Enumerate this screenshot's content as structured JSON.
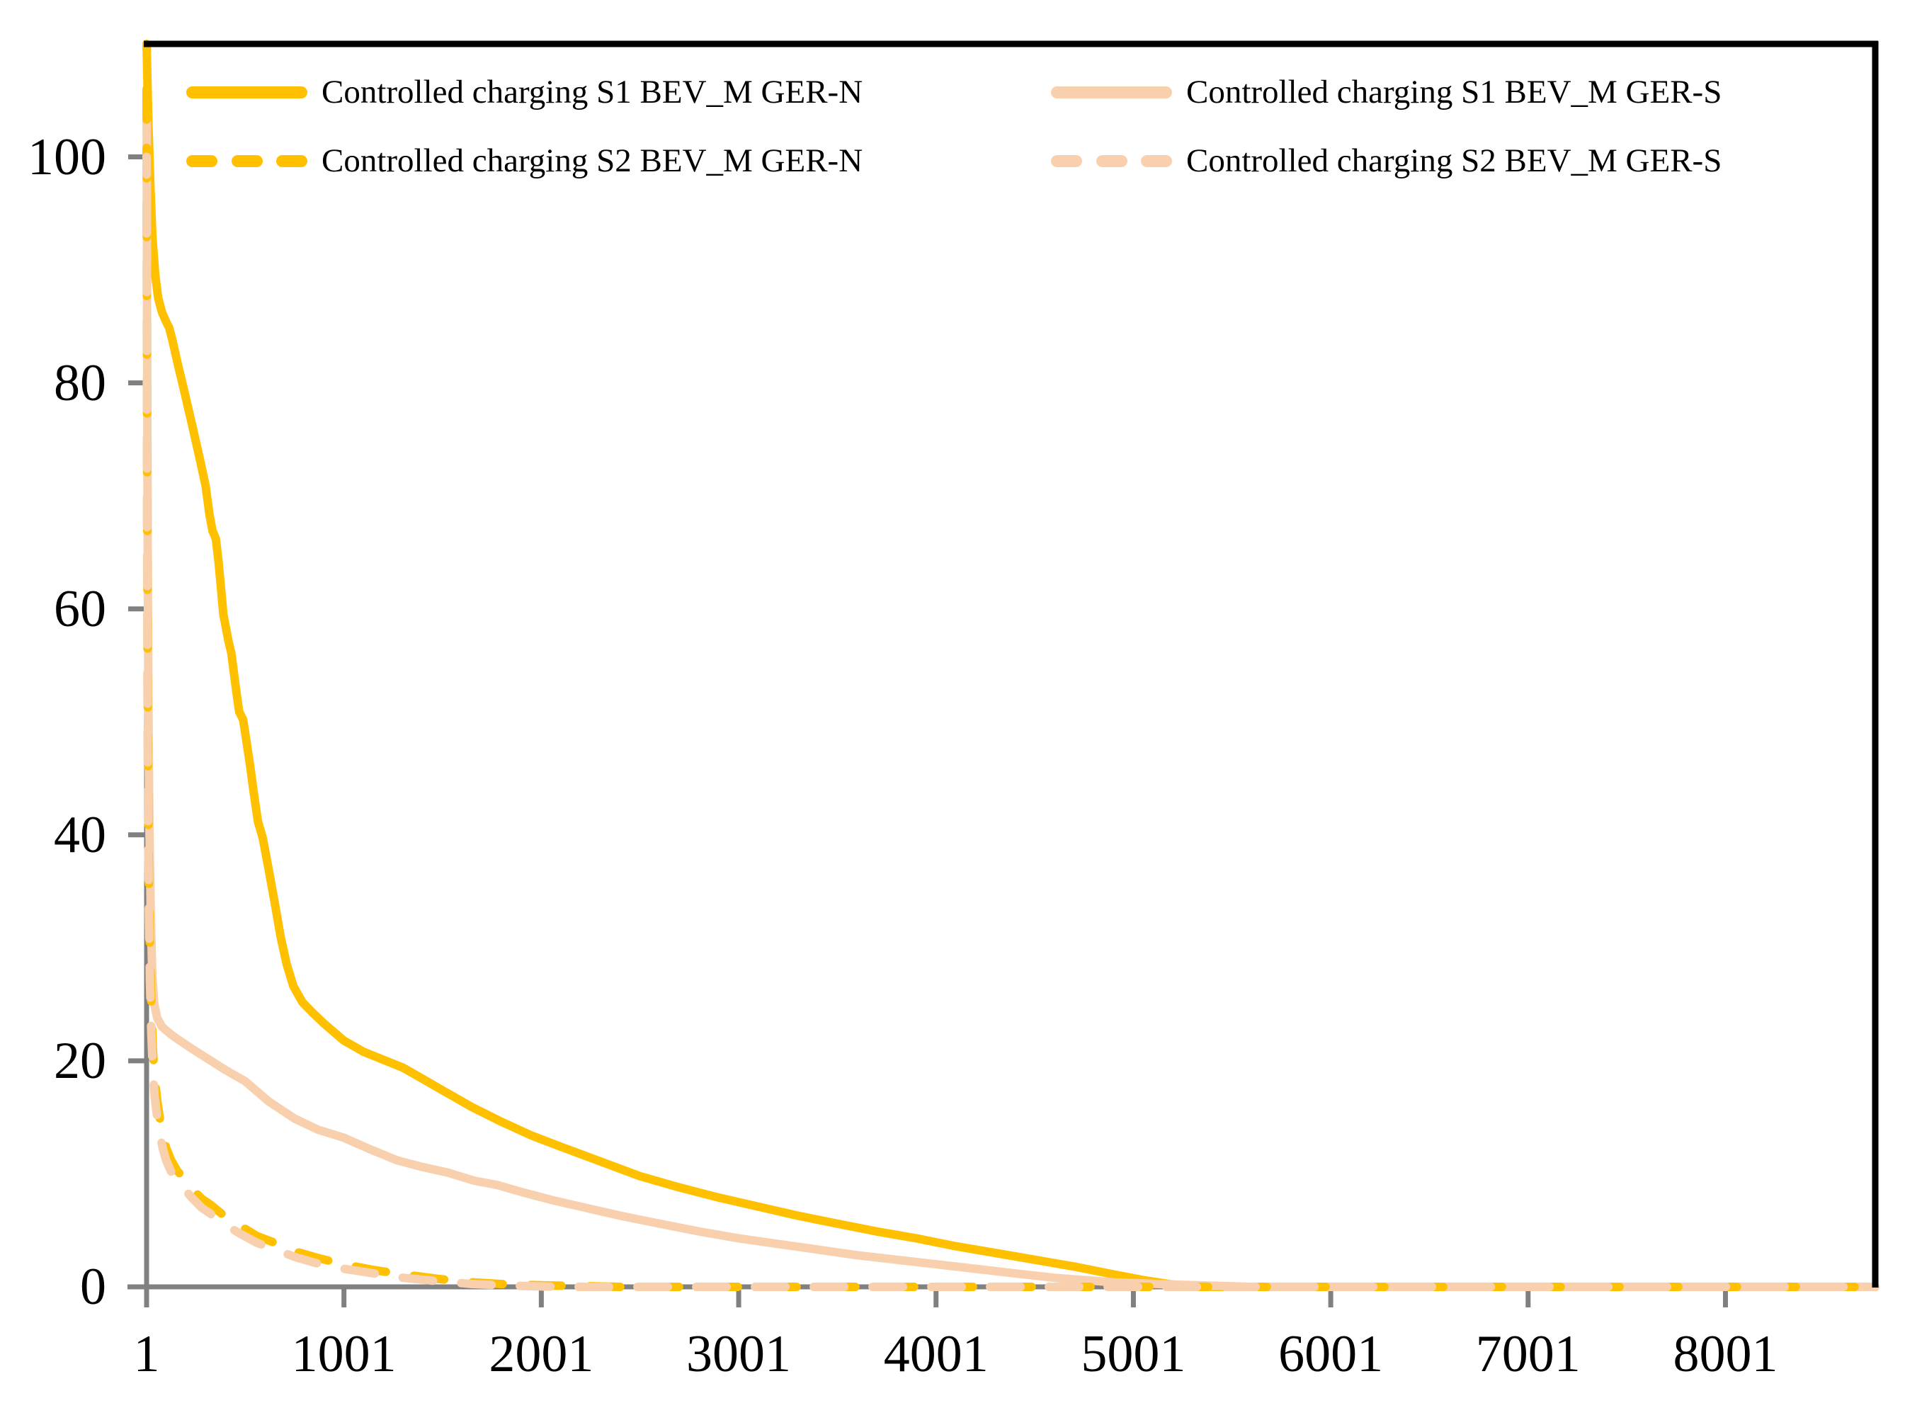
{
  "chart_data": {
    "type": "line",
    "title": "",
    "xlabel": "",
    "ylabel": "",
    "grid": false,
    "legend_position": "top",
    "x_axis": {
      "range": [
        1,
        8760
      ],
      "ticks": [
        1,
        1001,
        2001,
        3001,
        4001,
        5001,
        6001,
        7001,
        8001
      ]
    },
    "y_axis": {
      "range": [
        0,
        110
      ],
      "ticks": [
        0,
        20,
        40,
        60,
        80,
        100
      ]
    },
    "colors": {
      "gold": "#FFC000",
      "peach": "#F9D0AE",
      "axis": "#808080",
      "border": "#000000",
      "text": "#000000"
    },
    "series": [
      {
        "name": "Controlled charging S1 BEV_M GER-N",
        "color": "#FFC000",
        "style": "solid",
        "points": [
          [
            1,
            110
          ],
          [
            10,
            103
          ],
          [
            20,
            97.5
          ],
          [
            30,
            93
          ],
          [
            45,
            89.5
          ],
          [
            60,
            87.5
          ],
          [
            80,
            86.2
          ],
          [
            100,
            85.4
          ],
          [
            115,
            84.9
          ],
          [
            130,
            83.9
          ],
          [
            160,
            81.6
          ],
          [
            190,
            79.4
          ],
          [
            230,
            76.4
          ],
          [
            270,
            73.3
          ],
          [
            300,
            70.9
          ],
          [
            320,
            68.3
          ],
          [
            335,
            66.9
          ],
          [
            352,
            66.2
          ],
          [
            365,
            64.3
          ],
          [
            378,
            61.8
          ],
          [
            390,
            59.5
          ],
          [
            400,
            58.6
          ],
          [
            415,
            57.2
          ],
          [
            430,
            56.1
          ],
          [
            440,
            54.8
          ],
          [
            455,
            52.8
          ],
          [
            470,
            50.9
          ],
          [
            490,
            50.2
          ],
          [
            505,
            48.5
          ],
          [
            525,
            46.2
          ],
          [
            545,
            43.6
          ],
          [
            565,
            41.2
          ],
          [
            590,
            39.7
          ],
          [
            620,
            36.9
          ],
          [
            650,
            34
          ],
          [
            680,
            31
          ],
          [
            710,
            28.6
          ],
          [
            745,
            26.6
          ],
          [
            790,
            25.2
          ],
          [
            840,
            24.3
          ],
          [
            900,
            23.3
          ],
          [
            1000,
            21.8
          ],
          [
            1100,
            20.8
          ],
          [
            1200,
            20.1
          ],
          [
            1300,
            19.4
          ],
          [
            1400,
            18.4
          ],
          [
            1500,
            17.4
          ],
          [
            1650,
            15.9
          ],
          [
            1800,
            14.6
          ],
          [
            1950,
            13.4
          ],
          [
            2100,
            12.4
          ],
          [
            2300,
            11.1
          ],
          [
            2500,
            9.8
          ],
          [
            2700,
            8.8
          ],
          [
            2900,
            7.9
          ],
          [
            3100,
            7.1
          ],
          [
            3300,
            6.3
          ],
          [
            3500,
            5.6
          ],
          [
            3700,
            4.9
          ],
          [
            3900,
            4.3
          ],
          [
            4100,
            3.6
          ],
          [
            4300,
            3
          ],
          [
            4500,
            2.4
          ],
          [
            4700,
            1.8
          ],
          [
            4900,
            1.1
          ],
          [
            5050,
            0.6
          ],
          [
            5200,
            0.2
          ],
          [
            5400,
            0
          ],
          [
            8760,
            0
          ]
        ]
      },
      {
        "name": "Controlled charging S1 BEV_M GER-S",
        "color": "#F9D0AE",
        "style": "solid",
        "points": [
          [
            1,
            105
          ],
          [
            3,
            88
          ],
          [
            6,
            68
          ],
          [
            10,
            52
          ],
          [
            15,
            41
          ],
          [
            22,
            33
          ],
          [
            30,
            27.5
          ],
          [
            40,
            25
          ],
          [
            55,
            23.8
          ],
          [
            80,
            23
          ],
          [
            120,
            22.4
          ],
          [
            160,
            21.9
          ],
          [
            220,
            21.2
          ],
          [
            300,
            20.3
          ],
          [
            400,
            19.2
          ],
          [
            500,
            18.2
          ],
          [
            620,
            16.4
          ],
          [
            750,
            14.9
          ],
          [
            870,
            13.9
          ],
          [
            1000,
            13.2
          ],
          [
            1130,
            12.2
          ],
          [
            1270,
            11.2
          ],
          [
            1400,
            10.6
          ],
          [
            1530,
            10.1
          ],
          [
            1660,
            9.4
          ],
          [
            1780,
            9
          ],
          [
            1900,
            8.4
          ],
          [
            2050,
            7.7
          ],
          [
            2200,
            7.1
          ],
          [
            2400,
            6.3
          ],
          [
            2600,
            5.6
          ],
          [
            2800,
            4.9
          ],
          [
            3000,
            4.3
          ],
          [
            3200,
            3.8
          ],
          [
            3400,
            3.3
          ],
          [
            3600,
            2.8
          ],
          [
            3800,
            2.4
          ],
          [
            4000,
            2
          ],
          [
            4200,
            1.6
          ],
          [
            4400,
            1.2
          ],
          [
            4600,
            0.8
          ],
          [
            4900,
            0.4
          ],
          [
            5200,
            0.2
          ],
          [
            5600,
            0
          ],
          [
            8760,
            0
          ]
        ]
      },
      {
        "name": "Controlled charging S2 BEV_M GER-N",
        "color": "#FFC000",
        "style": "dashed",
        "points": [
          [
            1,
            106
          ],
          [
            2,
            92
          ],
          [
            4,
            72
          ],
          [
            6,
            56
          ],
          [
            9,
            44
          ],
          [
            13,
            36
          ],
          [
            18,
            30
          ],
          [
            25,
            25
          ],
          [
            33,
            21
          ],
          [
            42,
            18.5
          ],
          [
            55,
            16.5
          ],
          [
            70,
            14.7
          ],
          [
            85,
            13.3
          ],
          [
            100,
            12.3
          ],
          [
            125,
            11.2
          ],
          [
            155,
            10.3
          ],
          [
            190,
            9.6
          ],
          [
            230,
            8.7
          ],
          [
            280,
            7.8
          ],
          [
            330,
            7.2
          ],
          [
            400,
            6.2
          ],
          [
            475,
            5.4
          ],
          [
            560,
            4.5
          ],
          [
            650,
            3.9
          ],
          [
            760,
            3.1
          ],
          [
            880,
            2.5
          ],
          [
            1000,
            2
          ],
          [
            1150,
            1.5
          ],
          [
            1300,
            1.1
          ],
          [
            1480,
            0.7
          ],
          [
            1650,
            0.4
          ],
          [
            1850,
            0.2
          ],
          [
            2100,
            0.1
          ],
          [
            2400,
            0
          ],
          [
            8760,
            0
          ]
        ]
      },
      {
        "name": "Controlled charging S2 BEV_M GER-S",
        "color": "#F9D0AE",
        "style": "dashed",
        "points": [
          [
            1,
            100
          ],
          [
            2,
            85
          ],
          [
            4,
            65
          ],
          [
            6,
            50
          ],
          [
            9,
            40
          ],
          [
            13,
            32.5
          ],
          [
            18,
            27
          ],
          [
            25,
            22.5
          ],
          [
            33,
            19
          ],
          [
            42,
            16.8
          ],
          [
            55,
            15
          ],
          [
            70,
            13.3
          ],
          [
            85,
            12.1
          ],
          [
            100,
            11.2
          ],
          [
            125,
            10.2
          ],
          [
            155,
            9.4
          ],
          [
            190,
            8.7
          ],
          [
            230,
            7.9
          ],
          [
            280,
            7
          ],
          [
            330,
            6.4
          ],
          [
            400,
            5.5
          ],
          [
            475,
            4.7
          ],
          [
            560,
            3.9
          ],
          [
            650,
            3.3
          ],
          [
            760,
            2.6
          ],
          [
            880,
            2
          ],
          [
            1000,
            1.6
          ],
          [
            1150,
            1.2
          ],
          [
            1300,
            0.8
          ],
          [
            1480,
            0.5
          ],
          [
            1650,
            0.25
          ],
          [
            1850,
            0.1
          ],
          [
            2100,
            0
          ],
          [
            8760,
            0
          ]
        ]
      }
    ],
    "legend": [
      {
        "label": "Controlled charging S1 BEV_M GER-N",
        "color": "#FFC000",
        "style": "solid"
      },
      {
        "label": "Controlled charging S1 BEV_M GER-S",
        "color": "#F9D0AE",
        "style": "solid"
      },
      {
        "label": "Controlled charging S2 BEV_M GER-N",
        "color": "#FFC000",
        "style": "dashed"
      },
      {
        "label": "Controlled charging S2 BEV_M GER-S",
        "color": "#F9D0AE",
        "style": "dashed"
      }
    ]
  }
}
